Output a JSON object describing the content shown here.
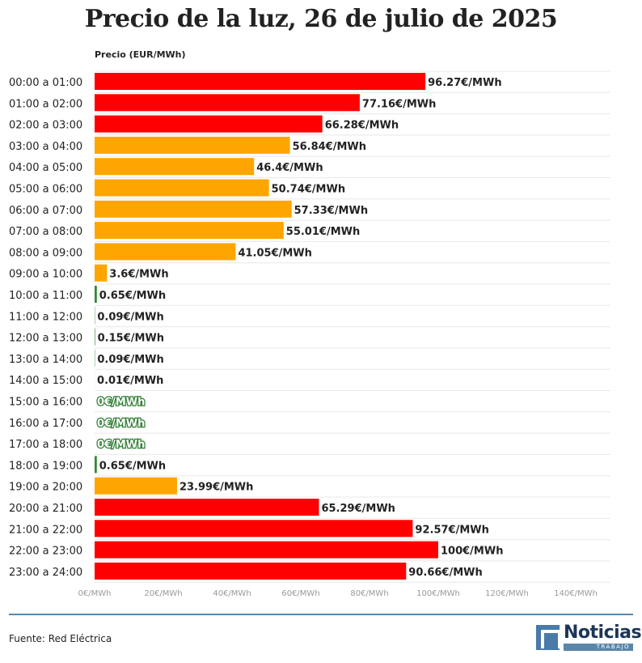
{
  "chart_data": {
    "type": "bar",
    "orientation": "horizontal",
    "title": "Precio de la luz, 26 de julio de 2025",
    "axis_title": "Precio (EUR/MWh)",
    "value_suffix": "€/MWh",
    "xlim": [
      0,
      150
    ],
    "ticks": [
      0,
      20,
      40,
      60,
      80,
      100,
      120,
      140
    ],
    "tick_labels": [
      "0€/MWh",
      "20€/MWh",
      "40€/MWh",
      "60€/MWh",
      "80€/MWh",
      "100€/MWh",
      "120€/MWh",
      "140€/MWh"
    ],
    "categories": [
      "00:00 a 01:00",
      "01:00 a 02:00",
      "02:00 a 03:00",
      "03:00 a 04:00",
      "04:00 a 05:00",
      "05:00 a 06:00",
      "06:00 a 07:00",
      "07:00 a 08:00",
      "08:00 a 09:00",
      "09:00 a 10:00",
      "10:00 a 11:00",
      "11:00 a 12:00",
      "12:00 a 13:00",
      "13:00 a 14:00",
      "14:00 a 15:00",
      "15:00 a 16:00",
      "16:00 a 17:00",
      "17:00 a 18:00",
      "18:00 a 19:00",
      "19:00 a 20:00",
      "20:00 a 21:00",
      "21:00 a 22:00",
      "22:00 a 23:00",
      "23:00 a 24:00"
    ],
    "values": [
      96.27,
      77.16,
      66.28,
      56.84,
      46.4,
      50.74,
      57.33,
      55.01,
      41.05,
      3.6,
      0.65,
      0.09,
      0.15,
      0.09,
      0.01,
      0,
      0,
      0,
      0.65,
      23.99,
      65.29,
      92.57,
      100,
      90.66
    ],
    "value_labels": [
      "96.27€/MWh",
      "77.16€/MWh",
      "66.28€/MWh",
      "56.84€/MWh",
      "46.4€/MWh",
      "50.74€/MWh",
      "57.33€/MWh",
      "55.01€/MWh",
      "41.05€/MWh",
      "3.6€/MWh",
      "0.65€/MWh",
      "0.09€/MWh",
      "0.15€/MWh",
      "0.09€/MWh",
      "0.01€/MWh",
      "0€/MWh",
      "0€/MWh",
      "0€/MWh",
      "0.65€/MWh",
      "23.99€/MWh",
      "65.29€/MWh",
      "92.57€/MWh",
      "100€/MWh",
      "90.66€/MWh"
    ],
    "bar_colors": [
      "red",
      "red",
      "red",
      "orange",
      "orange",
      "orange",
      "orange",
      "orange",
      "orange",
      "orange",
      "green",
      "green",
      "green",
      "green",
      "green",
      "green",
      "green",
      "green",
      "green",
      "orange",
      "red",
      "red",
      "red",
      "red"
    ],
    "colors": {
      "red": "#ff0000",
      "orange": "#ffa500",
      "green": "#2e8b2e",
      "grid": "#e8e8e8"
    },
    "grid": true,
    "legend": "none"
  },
  "footer": {
    "source": "Fuente: Red Eléctrica",
    "logo_text": "Noticias",
    "logo_subtext": "TRABAJO"
  }
}
